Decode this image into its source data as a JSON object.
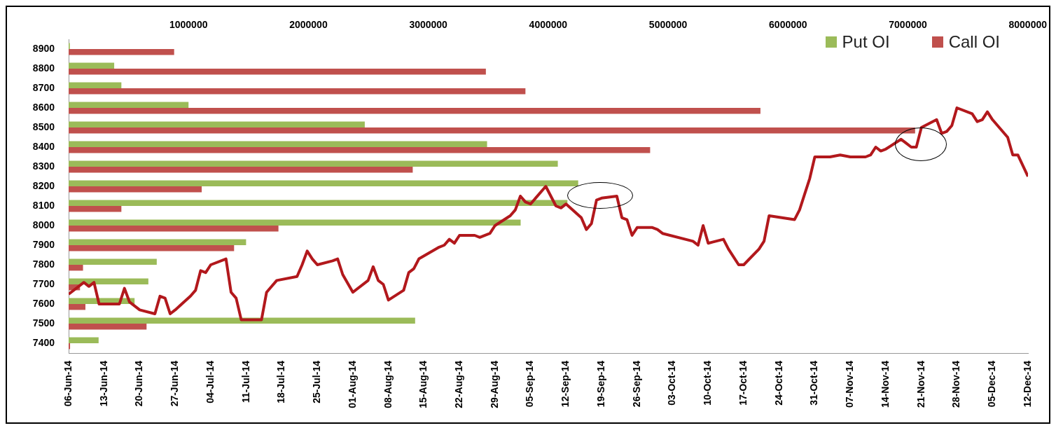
{
  "chart_data": [
    {
      "type": "bar",
      "orientation": "horizontal",
      "legend": "top right",
      "ylim": [
        7350,
        8950
      ],
      "yticks": [
        7400,
        7500,
        7600,
        7700,
        7800,
        7900,
        8000,
        8100,
        8200,
        8300,
        8400,
        8500,
        8600,
        8700,
        8800,
        8900
      ],
      "xlim": [
        0,
        8000000
      ],
      "xticks": [
        1000000,
        2000000,
        3000000,
        4000000,
        5000000,
        6000000,
        7000000,
        8000000
      ],
      "series": [
        {
          "name": "Put OI",
          "color": "#9bbb59",
          "x": [
            8900,
            8800,
            8700,
            8600,
            8500,
            8400,
            8300,
            8200,
            8100,
            8000,
            7900,
            7800,
            7700,
            7600,
            7500,
            7400
          ],
          "values": [
            10000,
            380000,
            440000,
            1000000,
            2470000,
            3490000,
            4080000,
            4250000,
            4160000,
            3770000,
            1480000,
            735000,
            665000,
            550000,
            2890000,
            250000
          ]
        },
        {
          "name": "Call OI",
          "color": "#c0504d",
          "x": [
            8900,
            8800,
            8700,
            8600,
            8500,
            8400,
            8300,
            8200,
            8100,
            8000,
            7900,
            7800,
            7700,
            7600,
            7500,
            7400
          ],
          "values": [
            880000,
            3480000,
            3810000,
            5770000,
            7060000,
            4850000,
            2870000,
            1110000,
            440000,
            1750000,
            1380000,
            120000,
            95000,
            140000,
            650000,
            12000
          ]
        }
      ]
    },
    {
      "type": "line",
      "tick_labels": "x",
      "ylim": [
        7350,
        8950
      ],
      "yticks": [
        7400,
        7500,
        7600,
        7700,
        7800,
        7900,
        8000,
        8100,
        8200,
        8300,
        8400,
        8500,
        8600,
        8700,
        8800,
        8900
      ],
      "xlim": [
        "--06-06",
        "--12-12"
      ],
      "xticks": [
        {
          "value": "--06-06",
          "label": "06-Jun-14"
        },
        {
          "value": "--06-13",
          "label": "13-Jun-14"
        },
        {
          "value": "--06-20",
          "label": "20-Jun-14"
        },
        {
          "value": "--06-27",
          "label": "27-Jun-14"
        },
        {
          "value": "--07-04",
          "label": "04-Jul-14"
        },
        {
          "value": "--07-11",
          "label": "11-Jul-14"
        },
        {
          "value": "--07-18",
          "label": "18-Jul-14"
        },
        {
          "value": "--07-25",
          "label": "25-Jul-14"
        },
        {
          "value": "--08-01",
          "label": "01-Aug-14"
        },
        {
          "value": "--08-08",
          "label": "08-Aug-14"
        },
        {
          "value": "--08-15",
          "label": "15-Aug-14"
        },
        {
          "value": "--08-22",
          "label": "22-Aug-14"
        },
        {
          "value": "--08-29",
          "label": "29-Aug-14"
        },
        {
          "value": "--09-05",
          "label": "05-Sep-14"
        },
        {
          "value": "--09-12",
          "label": "12-Sep-14"
        },
        {
          "value": "--09-19",
          "label": "19-Sep-14"
        },
        {
          "value": "--09-26",
          "label": "26-Sep-14"
        },
        {
          "value": "--10-03",
          "label": "03-Oct-14"
        },
        {
          "value": "--10-10",
          "label": "10-Oct-14"
        },
        {
          "value": "--10-17",
          "label": "17-Oct-14"
        },
        {
          "value": "--10-24",
          "label": "24-Oct-14"
        },
        {
          "value": "--10-31",
          "label": "31-Oct-14"
        },
        {
          "value": "--11-07",
          "label": "07-Nov-14"
        },
        {
          "value": "--11-14",
          "label": "14-Nov-14"
        },
        {
          "value": "--11-21",
          "label": "21-Nov-14"
        },
        {
          "value": "--11-28",
          "label": "28-Nov-14"
        },
        {
          "value": "--12-05",
          "label": "05-Dec-14"
        },
        {
          "value": "--12-12",
          "label": "12-Dec-14"
        }
      ],
      "series": [
        {
          "color": "#b2181c",
          "line_style": "solid",
          "marker": "none",
          "x": [
            "--06-06",
            "--06-09",
            "--06-10",
            "--06-11",
            "--06-12",
            "--06-16",
            "--06-17",
            "--06-18",
            "--06-20",
            "--06-23",
            "--06-24",
            "--06-25",
            "--06-26",
            "--06-27",
            "--06-30",
            "--07-01",
            "--07-02",
            "--07-03",
            "--07-04",
            "--07-07",
            "--07-08",
            "--07-09",
            "--07-10",
            "--07-11",
            "--07-14",
            "--07-15",
            "--07-16",
            "--07-17",
            "--07-21",
            "--07-22",
            "--07-23",
            "--07-24",
            "--07-25",
            "--07-28",
            "--07-29",
            "--07-30",
            "--08-01",
            "--08-04",
            "--08-05",
            "--08-06",
            "--08-07",
            "--08-08",
            "--08-11",
            "--08-12",
            "--08-13",
            "--08-14",
            "--08-18",
            "--08-19",
            "--08-20",
            "--08-21",
            "--08-22",
            "--08-25",
            "--08-26",
            "--08-28",
            "--08-29",
            "--09-01",
            "--09-02",
            "--09-03",
            "--09-04",
            "--09-05",
            "--09-08",
            "--09-09",
            "--09-10",
            "--09-11",
            "--09-12",
            "--09-15",
            "--09-16",
            "--09-17",
            "--09-18",
            "--09-19",
            "--09-22",
            "--09-23",
            "--09-24",
            "--09-25",
            "--09-26",
            "--09-29",
            "--09-30",
            "--10-01",
            "--10-07",
            "--10-08",
            "--10-09",
            "--10-10",
            "--10-13",
            "--10-14",
            "--10-16",
            "--10-17",
            "--10-20",
            "--10-21",
            "--10-22",
            "--10-27",
            "--10-28",
            "--10-29",
            "--10-30",
            "--10-31",
            "--11-03",
            "--11-05",
            "--11-07",
            "--11-10",
            "--11-11",
            "--11-12",
            "--11-13",
            "--11-14",
            "--11-17",
            "--11-18",
            "--11-19",
            "--11-20",
            "--11-21",
            "--11-24",
            "--11-25",
            "--11-26",
            "--11-27",
            "--11-28",
            "--12-01",
            "--12-02",
            "--12-03",
            "--12-04",
            "--12-05",
            "--12-08",
            "--12-09",
            "--12-10",
            "--12-12"
          ],
          "values": [
            7650,
            7710,
            7690,
            7710,
            7600,
            7600,
            7680,
            7610,
            7570,
            7550,
            7640,
            7630,
            7550,
            7570,
            7640,
            7670,
            7770,
            7760,
            7800,
            7830,
            7660,
            7630,
            7520,
            7520,
            7520,
            7660,
            7690,
            7720,
            7740,
            7800,
            7870,
            7830,
            7800,
            7820,
            7830,
            7750,
            7660,
            7720,
            7790,
            7720,
            7700,
            7620,
            7670,
            7760,
            7780,
            7830,
            7890,
            7900,
            7930,
            7910,
            7950,
            7950,
            7940,
            7960,
            8000,
            8050,
            8080,
            8150,
            8120,
            8110,
            8200,
            8150,
            8100,
            8090,
            8110,
            8040,
            7980,
            8010,
            8130,
            8140,
            8150,
            8040,
            8030,
            7950,
            7990,
            7990,
            7980,
            7960,
            7920,
            7900,
            8000,
            7910,
            7930,
            7880,
            7800,
            7800,
            7880,
            7920,
            8050,
            8030,
            8080,
            8160,
            8240,
            8350,
            8350,
            8360,
            8350,
            8350,
            8360,
            8400,
            8380,
            8390,
            8440,
            8420,
            8400,
            8400,
            8500,
            8540,
            8470,
            8480,
            8510,
            8600,
            8570,
            8530,
            8540,
            8580,
            8540,
            8450,
            8360,
            8360,
            8250
          ]
        }
      ]
    }
  ]
}
